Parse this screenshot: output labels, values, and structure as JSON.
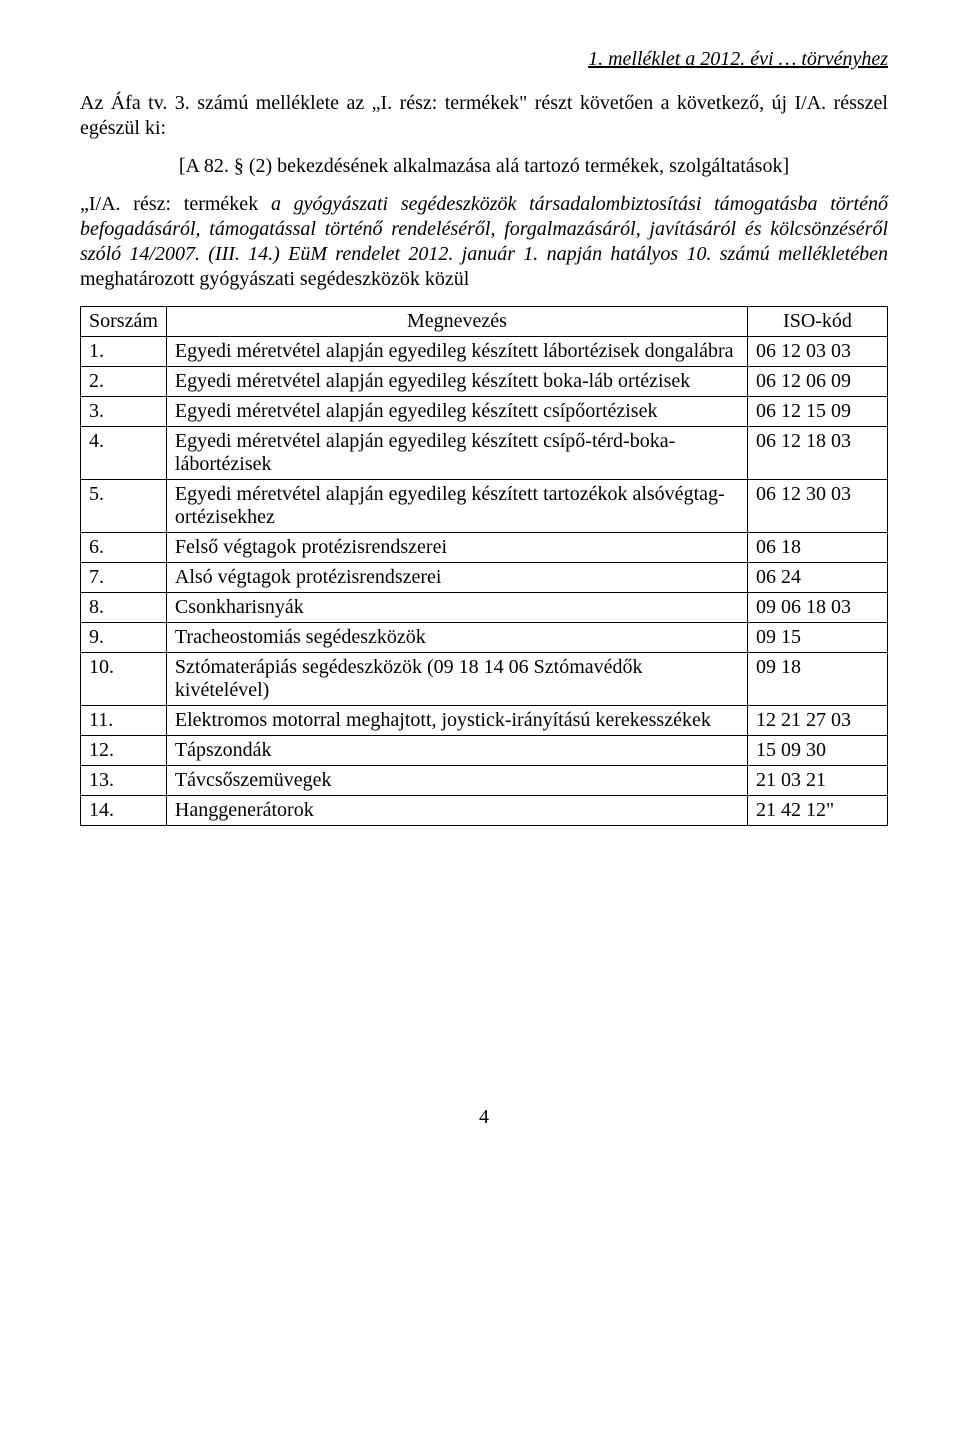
{
  "header": {
    "annex_title": "1. melléklet a  2012. évi … törvényhez"
  },
  "intro": {
    "p1_a": "Az Áfa tv. 3. számú melléklete az „I. rész: termékek\" részt követően a következő, új I/A. résszel egészül ki:",
    "p2": "[A 82. § (2) bekezdésének alkalmazása alá tartozó termékek, szolgáltatások]",
    "p3_a": "„I/A. rész: termékek ",
    "p3_b": "a gyógyászati segédeszközök társadalombiztosítási támogatásba történő befogadásáról, támogatással történő rendeléséről, forgalmazásáról, javításáról és kölcsönzéséről szóló 14/2007. (III. 14.) EüM rendelet 2012. január 1. napján hatályos 10. számú mellékletében",
    "p3_c": " meghatározott gyógyászati segédeszközök közül"
  },
  "table": {
    "columns": [
      "Sorszám",
      "Megnevezés",
      "ISO-kód"
    ],
    "rows": [
      [
        "1.",
        "Egyedi méretvétel alapján egyedileg készített lábortézisek dongalábra",
        "06 12 03 03"
      ],
      [
        "2.",
        "Egyedi méretvétel alapján egyedileg készített boka-láb ortézisek",
        "06 12 06 09"
      ],
      [
        "3.",
        "Egyedi méretvétel alapján egyedileg készített csípőortézisek",
        "06 12 15 09"
      ],
      [
        "4.",
        "Egyedi méretvétel alapján egyedileg készített csípő-térd-boka-lábortézisek",
        "06 12 18 03"
      ],
      [
        "5.",
        "Egyedi méretvétel alapján egyedileg készített tartozékok alsóvégtag-ortézisekhez",
        "06 12 30 03"
      ],
      [
        "6.",
        "Felső végtagok protézisrendszerei",
        "06 18"
      ],
      [
        "7.",
        "Alsó végtagok protézisrendszerei",
        "06 24"
      ],
      [
        "8.",
        "Csonkharisnyák",
        "09 06 18 03"
      ],
      [
        "9.",
        "Tracheostomiás segédeszközök",
        "09 15"
      ],
      [
        "10.",
        "Sztómaterápiás segédeszközök (09 18 14 06 Sztómavédők kivételével)",
        "09 18"
      ],
      [
        "11.",
        "Elektromos motorral meghajtott, joystick-irányítású kerekesszékek",
        "12 21 27 03"
      ],
      [
        "12.",
        "Tápszondák",
        "15 09 30"
      ],
      [
        "13.",
        "Távcsőszemüvegek",
        "21 03 21"
      ],
      [
        "14.",
        "Hanggenerátorok",
        "21 42 12\""
      ]
    ]
  },
  "footer": {
    "page_number": "4"
  }
}
